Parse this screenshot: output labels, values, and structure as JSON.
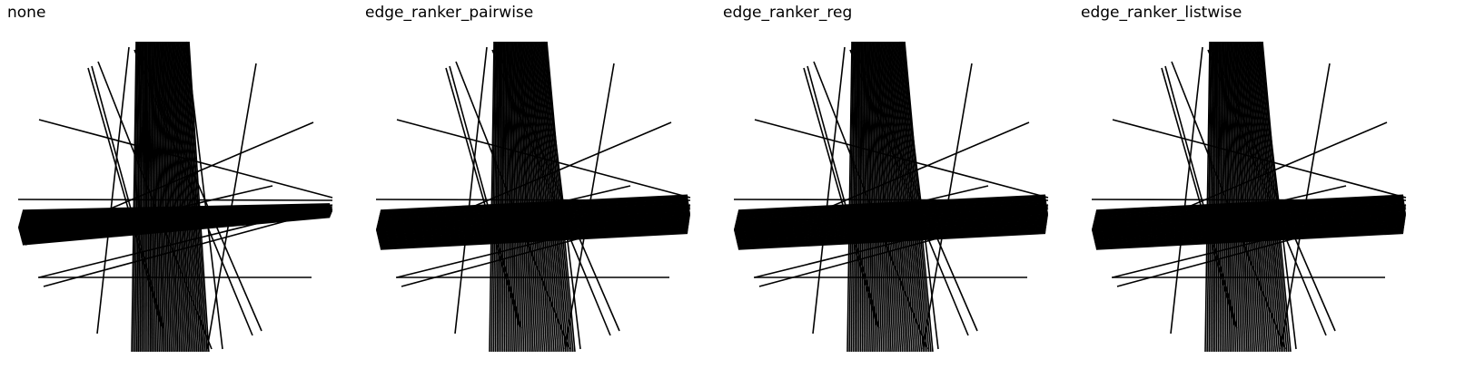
{
  "panels": [
    {
      "title": "none",
      "spread": 0.35
    },
    {
      "title": "edge_ranker_pairwise",
      "spread": 1.0
    },
    {
      "title": "edge_ranker_reg",
      "spread": 1.0
    },
    {
      "title": "edge_ranker_listwise",
      "spread": 1.0
    }
  ],
  "colors": {
    "stroke": "#000000",
    "background": "#ffffff"
  }
}
